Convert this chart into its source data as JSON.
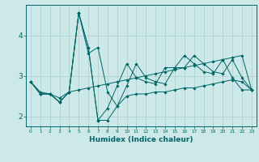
{
  "bg_color": "#cce8e8",
  "line_color": "#006666",
  "grid_color": "#aacece",
  "xlabel": "Humidex (Indice chaleur)",
  "xlim": [
    -0.5,
    23.5
  ],
  "ylim": [
    1.75,
    4.75
  ],
  "yticks": [
    2,
    3,
    4
  ],
  "xticks": [
    0,
    1,
    2,
    3,
    4,
    5,
    6,
    7,
    8,
    9,
    10,
    11,
    12,
    13,
    14,
    15,
    16,
    17,
    18,
    19,
    20,
    21,
    22,
    23
  ],
  "series": [
    [
      2.85,
      2.55,
      2.55,
      2.35,
      2.6,
      4.55,
      3.55,
      3.7,
      2.6,
      2.25,
      2.5,
      2.55,
      2.55,
      2.6,
      2.6,
      2.65,
      2.7,
      2.7,
      2.75,
      2.8,
      2.85,
      2.9,
      2.85,
      2.65
    ],
    [
      2.85,
      2.55,
      2.55,
      2.35,
      2.6,
      4.55,
      3.7,
      1.9,
      1.9,
      2.25,
      2.75,
      3.3,
      2.95,
      2.85,
      2.8,
      3.2,
      3.2,
      3.5,
      3.3,
      3.1,
      3.05,
      3.4,
      2.95,
      2.65
    ],
    [
      2.85,
      2.55,
      2.55,
      2.35,
      2.6,
      4.55,
      3.7,
      1.9,
      2.2,
      2.75,
      3.3,
      2.95,
      2.85,
      2.8,
      3.2,
      3.2,
      3.5,
      3.3,
      3.1,
      3.05,
      3.4,
      2.95,
      2.65,
      2.65
    ],
    [
      2.85,
      2.6,
      2.55,
      2.45,
      2.6,
      2.65,
      2.7,
      2.75,
      2.8,
      2.85,
      2.9,
      2.95,
      3.0,
      3.05,
      3.1,
      3.15,
      3.2,
      3.25,
      3.3,
      3.35,
      3.4,
      3.45,
      3.5,
      2.65
    ]
  ]
}
